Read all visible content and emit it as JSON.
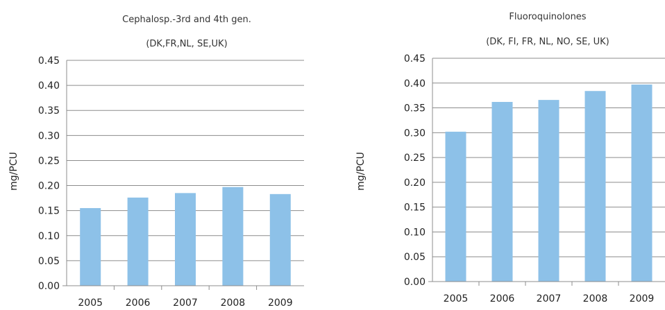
{
  "chart_data": [
    {
      "type": "bar",
      "title": "Cephalosp.-3rd and 4th gen.",
      "subtitle": "(DK,FR,NL, SE,UK)",
      "ylabel": "mg/PCU",
      "xlabel": "",
      "categories": [
        "2005",
        "2006",
        "2007",
        "2008",
        "2009"
      ],
      "values": [
        0.155,
        0.176,
        0.185,
        0.197,
        0.183
      ],
      "ylim": [
        0,
        0.45
      ],
      "yticks": [
        "0.00",
        "0.05",
        "0.10",
        "0.15",
        "0.20",
        "0.25",
        "0.30",
        "0.35",
        "0.40",
        "0.45"
      ],
      "grid": true,
      "bar_color": "#8dc1e8"
    },
    {
      "type": "bar",
      "title": "Fluoroquinolones",
      "subtitle": "(DK, FI, FR, NL, NO, SE, UK)",
      "ylabel": "mg/PCU",
      "xlabel": "",
      "categories": [
        "2005",
        "2006",
        "2007",
        "2008",
        "2009"
      ],
      "values": [
        0.302,
        0.362,
        0.366,
        0.384,
        0.397
      ],
      "ylim": [
        0,
        0.45
      ],
      "yticks": [
        "0.00",
        "0.05",
        "0.10",
        "0.15",
        "0.20",
        "0.25",
        "0.30",
        "0.35",
        "0.40",
        "0.45"
      ],
      "grid": true,
      "bar_color": "#8dc1e8"
    }
  ]
}
